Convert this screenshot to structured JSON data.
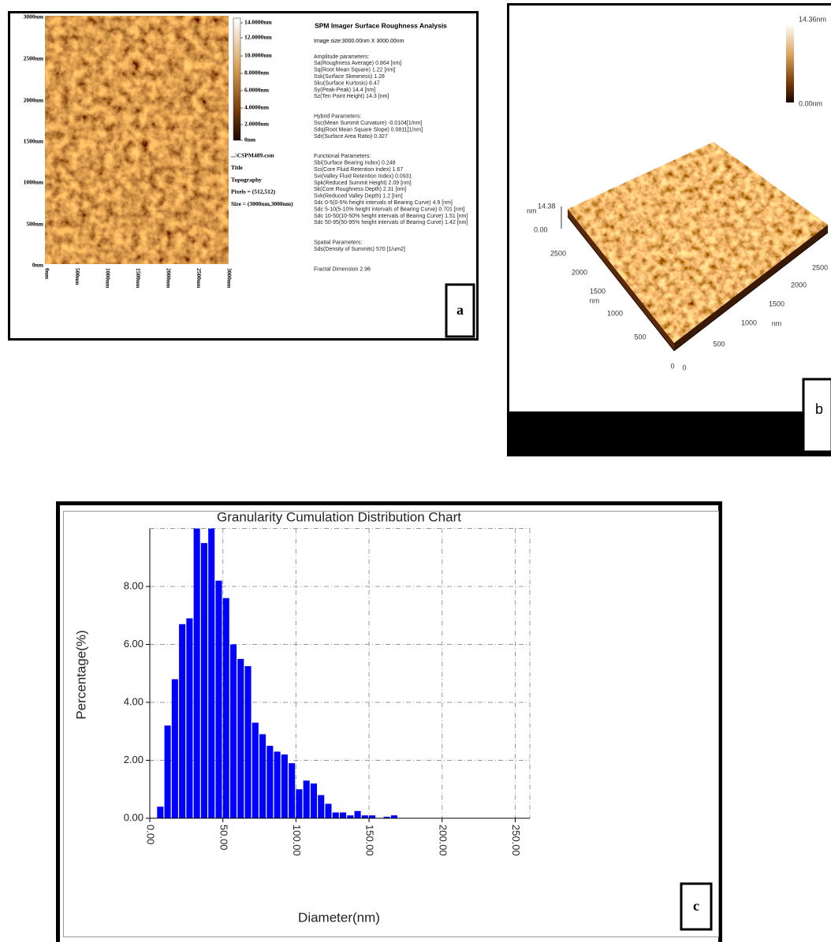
{
  "panel_a": {
    "label": "a",
    "y_labels": [
      "3000nm",
      "2500nm",
      "2000nm",
      "1500nm",
      "1000nm",
      "500nm",
      "0nm"
    ],
    "x_labels": [
      "0nm",
      "500nm",
      "1000nm",
      "1500nm",
      "2000nm",
      "2500nm",
      "3000nm"
    ],
    "colorbar_labels": [
      "14.0000nm",
      "12.0000nm",
      "10.0000nm",
      "8.0000nm",
      "6.0000nm",
      "4.0000nm",
      "2.0000nm",
      "0nm"
    ],
    "file_info": [
      "...\\CSPM489.csm",
      "Title",
      "Topography",
      "Pixels = (512,512)",
      "Size = (3000nm,3000nm)"
    ],
    "analysis_title": "SPM Imager Surface Roughness Analysis",
    "image_size": "Image size:3000.00nm X 3000.00nm",
    "sections": [
      {
        "heading": "Amplitude parameters:",
        "lines": [
          "Sa(Roughness Average)   0.864  [nm]",
          "Sq(Root Mean Square)   1.22  [nm]",
          "Ssk(Surface Skewness)   1.28",
          "Sku(Surface Kurtosis)   8.47",
          "Sy(Peak-Peak)   14.4  [nm]",
          "Sz(Ten Point Height)   14.3  [nm]"
        ]
      },
      {
        "heading": "Hybrid Parameters:",
        "lines": [
          "Ssc(Mean Summit Curvature)   -0.0104[1/nm]",
          "Sdq(Root Mean Square Slope)   0.0811[1/nm]",
          "Sdr(Surface Area Ratio)   0.327"
        ]
      },
      {
        "heading": "Functional Parameters:",
        "lines": [
          "Sbi(Surface Bearing Index)   0.248",
          "Sci(Core Fluid Retention Index)   1.67",
          "Svi(Valley Fluid Retention Index)   0.0931",
          "Spk(Reduced Summit Height)   2.09  [nm]",
          "Sk(Core Roughness Depth)   2.31  [nm]",
          "Svk(Reduced Valley Depth)   1.2  [nm]",
          "Sdc 0-5(0-5% height intervals of Bearing Curve)   4.9  [nm]",
          "Sdc 5-10(5-10% height intervals of Bearing Curve)   0.701 [nm]",
          "Sdc 10-50(10-50% height intervals of Bearing Curve)   1.51  [nm]",
          "Sdc 50-95(50-95% height intervals of Bearing Curve)   1.42  [nm]"
        ]
      },
      {
        "heading": "Spatial Parameters:",
        "lines": [
          "Sds(Density of Summits)   570  [1/um2]"
        ]
      },
      {
        "heading": "Fractal Dimension   2.96",
        "lines": []
      }
    ]
  },
  "panel_b": {
    "label": "b",
    "colorbar_max": "14.36nm",
    "colorbar_min": "0.00nm",
    "z_unit": "nm",
    "z_max": "14.38",
    "z_min": "0.00",
    "left_axis": [
      "2500",
      "2000",
      "1500",
      "nm",
      "1000",
      "500",
      "0"
    ],
    "right_axis": [
      "0",
      "500",
      "1000",
      "nm",
      "1500",
      "2000",
      "2500"
    ]
  },
  "chart_data": {
    "type": "histogram",
    "label": "c",
    "title": "Granularity Cumulation Distribution  Chart",
    "xlabel": "Diameter(nm)",
    "ylabel": "Percentage(%)",
    "color": "#0000ff",
    "bins": [
      5,
      10,
      15,
      20,
      25,
      30,
      35,
      40,
      45,
      50,
      55,
      60,
      65,
      70,
      75,
      80,
      85,
      90,
      95,
      100,
      105,
      110,
      115,
      120,
      125,
      130,
      135,
      140,
      145,
      150,
      155,
      160,
      165,
      170
    ],
    "values": [
      0.4,
      3.2,
      4.8,
      6.7,
      6.9,
      10,
      9.5,
      10,
      8.2,
      7.6,
      6.0,
      5.5,
      5.25,
      3.3,
      2.9,
      2.5,
      2.3,
      2.2,
      1.9,
      1.0,
      1.3,
      1.2,
      0.8,
      0.5,
      0.2,
      0.2,
      0.1,
      0.25,
      0.1,
      0.1,
      0,
      0.05,
      0.1
    ],
    "xlim": [
      0,
      260
    ],
    "ylim": [
      0,
      10
    ],
    "xticks": [
      {
        "value": 0,
        "label": "0.00"
      },
      {
        "value": 50,
        "label": "50.00"
      },
      {
        "value": 100,
        "label": "100.00"
      },
      {
        "value": 150,
        "label": "150.00"
      },
      {
        "value": 200,
        "label": "200.00"
      },
      {
        "value": 250,
        "label": "250.00"
      }
    ],
    "yticks": [
      {
        "value": 0,
        "label": "0.00"
      },
      {
        "value": 2,
        "label": "2.00"
      },
      {
        "value": 4,
        "label": "4.00"
      },
      {
        "value": 6,
        "label": "6.00"
      },
      {
        "value": 8,
        "label": "8.00"
      }
    ],
    "grid": true
  }
}
